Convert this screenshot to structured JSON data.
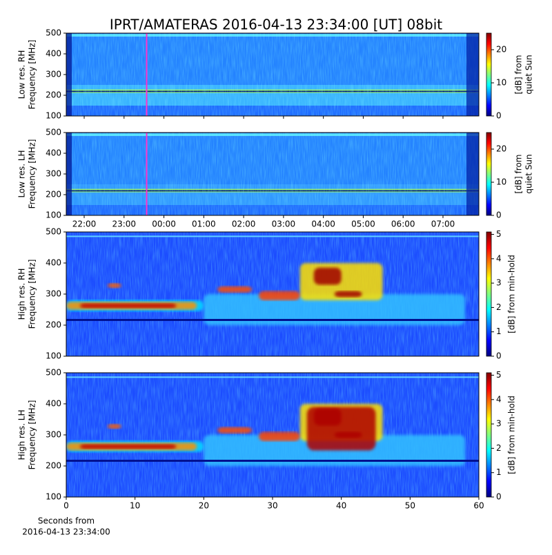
{
  "chart_data": [
    {
      "type": "heatmap",
      "title": "IPRT/AMATERAS 2016-04-13 23:34:00 [UT]   08bit",
      "ylabel": [
        "Low res. RH",
        "Frequency [MHz]"
      ],
      "ylim": [
        100,
        500
      ],
      "yticks": [
        100,
        200,
        300,
        400,
        500
      ],
      "xlim": [
        21.55,
        31.9
      ],
      "marker_x": 23.567,
      "marker_color": "#ff33cc",
      "colorbar": {
        "label": [
          "[dB] from",
          "quiet Sun"
        ],
        "lim": [
          0,
          25
        ],
        "ticks": [
          0,
          10,
          20
        ]
      }
    },
    {
      "type": "heatmap",
      "ylabel": [
        "Low res. LH",
        "Frequency [MHz]"
      ],
      "ylim": [
        100,
        500
      ],
      "yticks": [
        100,
        200,
        300,
        400,
        500
      ],
      "xlim": [
        21.55,
        31.9
      ],
      "marker_x": 23.567,
      "marker_color": "#ff33cc",
      "xticks": [
        {
          "value": 22,
          "label": "22:00"
        },
        {
          "value": 23,
          "label": "23:00"
        },
        {
          "value": 24,
          "label": "00:00"
        },
        {
          "value": 25,
          "label": "01:00"
        },
        {
          "value": 26,
          "label": "02:00"
        },
        {
          "value": 27,
          "label": "03:00"
        },
        {
          "value": 28,
          "label": "04:00"
        },
        {
          "value": 29,
          "label": "05:00"
        },
        {
          "value": 30,
          "label": "06:00"
        },
        {
          "value": 31,
          "label": "07:00"
        }
      ],
      "colorbar": {
        "label": [
          "[dB] from",
          "quiet Sun"
        ],
        "lim": [
          0,
          25
        ],
        "ticks": [
          0,
          10,
          20
        ]
      }
    },
    {
      "type": "heatmap",
      "ylabel": [
        "High res. RH",
        "Frequency [MHz]"
      ],
      "ylim": [
        100,
        500
      ],
      "yticks": [
        100,
        200,
        300,
        400,
        500
      ],
      "xlim": [
        0,
        60
      ],
      "colorbar": {
        "label": [
          "[dB] from min-hold"
        ],
        "lim": [
          0,
          5.1
        ],
        "ticks": [
          0,
          1,
          2,
          3,
          4,
          5
        ]
      }
    },
    {
      "type": "heatmap",
      "ylabel": [
        "High res. LH",
        "Frequency [MHz]"
      ],
      "ylim": [
        100,
        500
      ],
      "yticks": [
        100,
        200,
        300,
        400,
        500
      ],
      "xlim": [
        0,
        60
      ],
      "xticks": [
        0,
        10,
        20,
        30,
        40,
        50,
        60
      ],
      "xlabel": [
        "Seconds from",
        "2016-04-13 23:34:00"
      ],
      "colorbar": {
        "label": [
          "[dB] from min-hold"
        ],
        "lim": [
          0,
          5.1
        ],
        "ticks": [
          0,
          1,
          2,
          3,
          4,
          5
        ]
      }
    }
  ]
}
